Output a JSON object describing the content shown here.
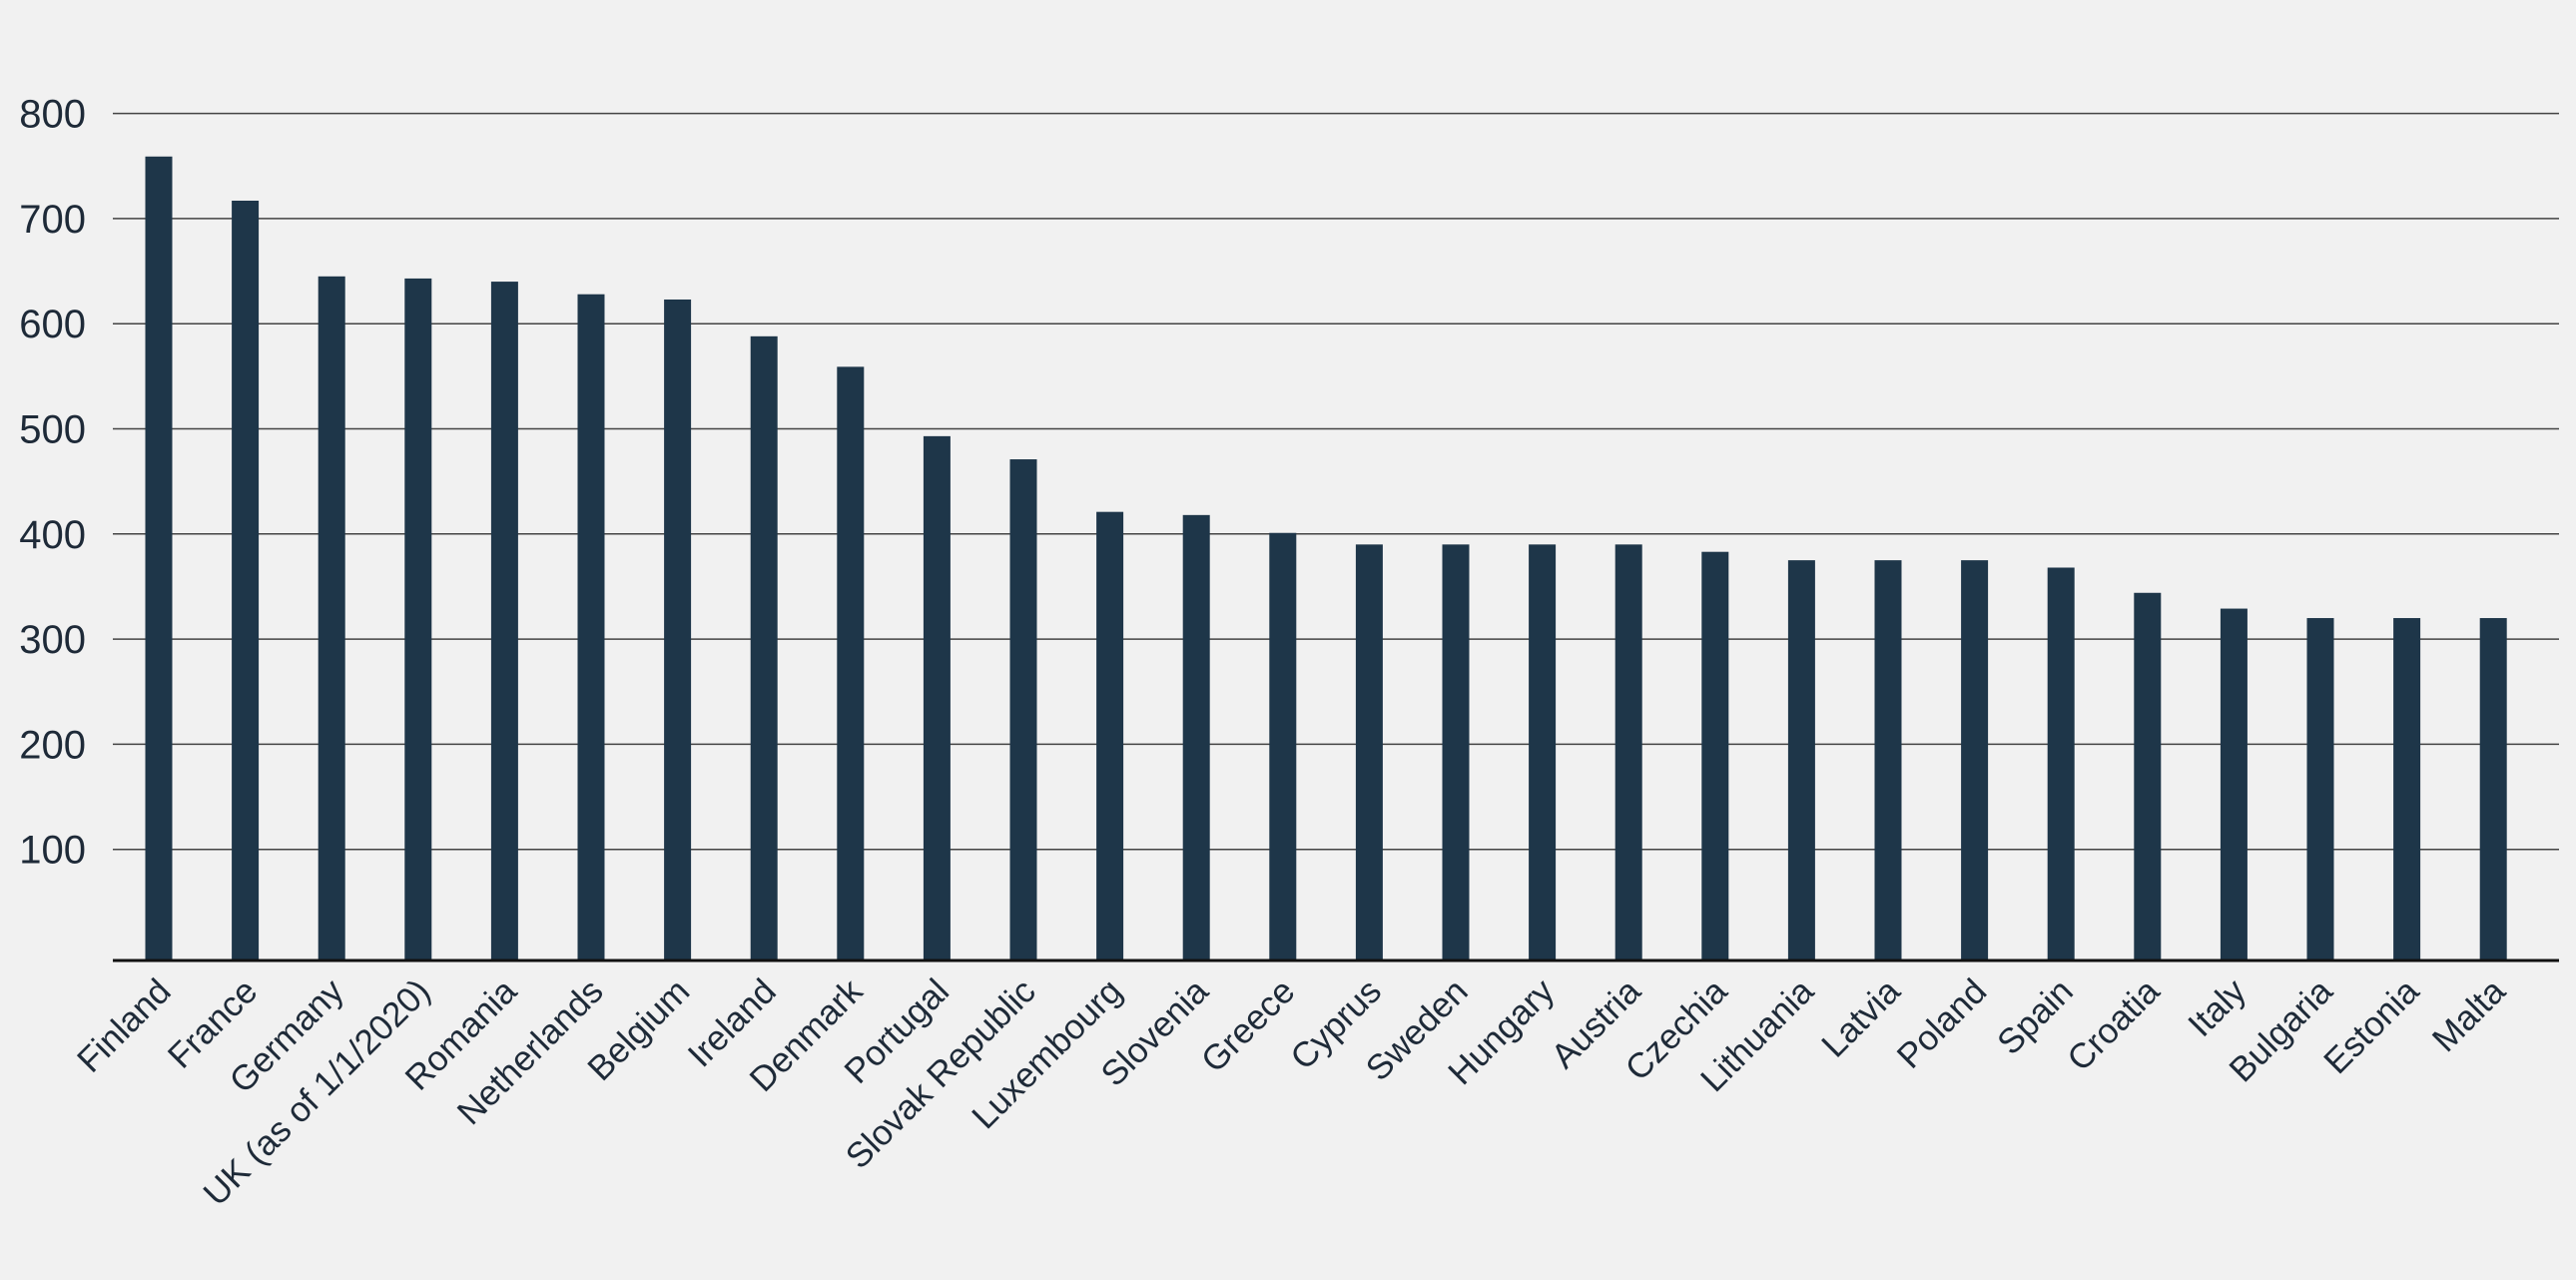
{
  "chart_data": {
    "type": "bar",
    "title": "",
    "xlabel": "",
    "ylabel": "",
    "ylim": [
      0,
      800
    ],
    "yticks": [
      100,
      200,
      300,
      400,
      500,
      600,
      700,
      800
    ],
    "grid": true,
    "bar_color": "#1e3649",
    "categories": [
      "Finland",
      "France",
      "Germany",
      "UK (as of 1/1/2020)",
      "Romania",
      "Netherlands",
      "Belgium",
      "Ireland",
      "Denmark",
      "Portugal",
      "Slovak Republic",
      "Luxembourg",
      "Slovenia",
      "Greece",
      "Cyprus",
      "Sweden",
      "Hungary",
      "Austria",
      "Czechia",
      "Lithuania",
      "Latvia",
      "Poland",
      "Spain",
      "Croatia",
      "Italy",
      "Bulgaria",
      "Estonia",
      "Malta"
    ],
    "values": [
      759,
      717,
      645,
      643,
      640,
      628,
      623,
      588,
      559,
      493,
      471,
      421,
      418,
      401,
      390,
      390,
      390,
      390,
      383,
      375,
      375,
      375,
      368,
      344,
      329,
      320,
      320,
      320
    ]
  }
}
